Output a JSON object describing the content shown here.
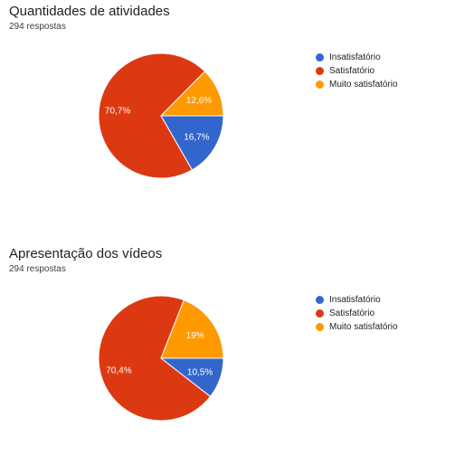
{
  "chart_data": [
    {
      "type": "pie",
      "title": "Quantidades de atividades",
      "subtitle": "294 respostas",
      "categories": [
        "Insatisfatório",
        "Satisfatório",
        "Muito satisfatório"
      ],
      "values": [
        16.7,
        70.7,
        12.6
      ],
      "labels": [
        "16,7%",
        "70,7%",
        "12,6%"
      ],
      "colors": [
        "#3366cc",
        "#dc3912",
        "#ff9900"
      ],
      "legend_position": "right"
    },
    {
      "type": "pie",
      "title": "Apresentação dos vídeos",
      "subtitle": "294 respostas",
      "categories": [
        "Insatisfatório",
        "Satisfatório",
        "Muito satisfatório"
      ],
      "values": [
        10.5,
        70.4,
        19.0
      ],
      "labels": [
        "10,5%",
        "70,4%",
        "19%"
      ],
      "colors": [
        "#3366cc",
        "#dc3912",
        "#ff9900"
      ],
      "legend_position": "right"
    }
  ]
}
